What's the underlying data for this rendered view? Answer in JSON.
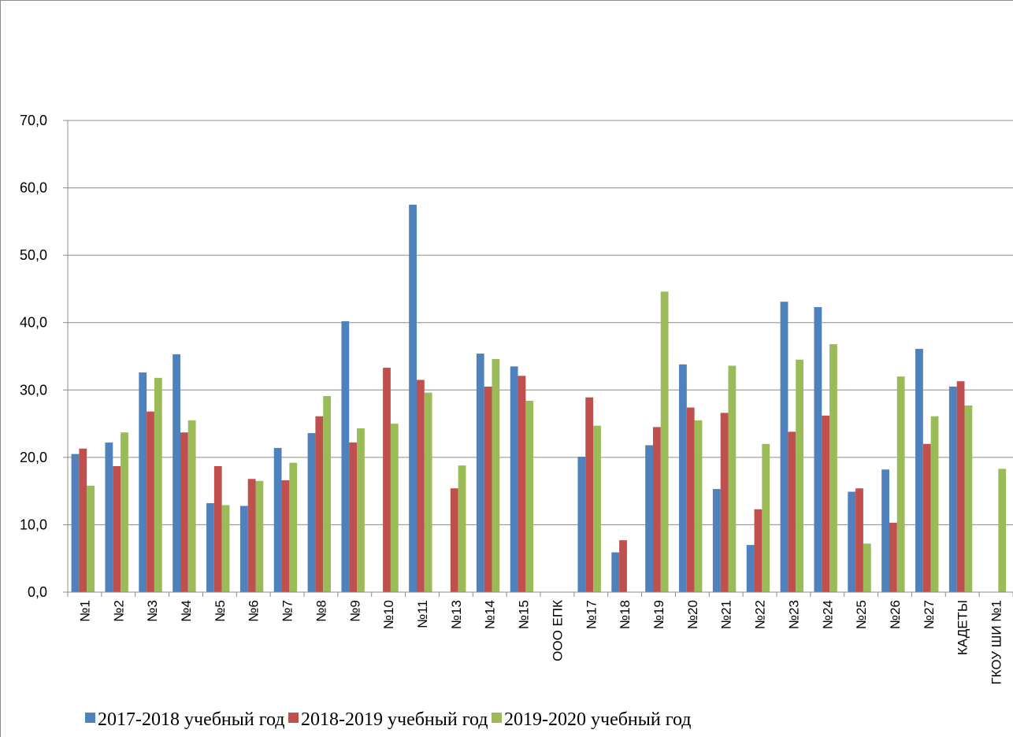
{
  "chart_data": {
    "type": "bar",
    "title": "",
    "xlabel": "",
    "ylabel": "",
    "ylim": [
      0,
      70
    ],
    "ytick_step": 10,
    "ytick_labels": [
      "0,0",
      "10,0",
      "20,0",
      "30,0",
      "40,0",
      "50,0",
      "60,0",
      "70,0"
    ],
    "grid": true,
    "legend_position": "bottom",
    "categories": [
      "№1",
      "№2",
      "№3",
      "№4",
      "№5",
      "№6",
      "№7",
      "№8",
      "№9",
      "№10",
      "№11",
      "№13",
      "№14",
      "№15",
      "ООО ЕПК",
      "№17",
      "№18",
      "№19",
      "№20",
      "№21",
      "№22",
      "№23",
      "№24",
      "№25",
      "№26",
      "№27",
      "КАДЕТЫ",
      "ГКОУ ШИ №1"
    ],
    "series": [
      {
        "name": "2017-2018 учебный год",
        "color": "#4F81BD",
        "values": [
          20.5,
          22.2,
          32.6,
          35.3,
          13.2,
          12.8,
          21.4,
          23.6,
          40.2,
          null,
          57.5,
          null,
          35.4,
          33.5,
          null,
          20.1,
          5.9,
          21.8,
          33.8,
          15.3,
          7.0,
          43.1,
          42.3,
          14.9,
          18.2,
          36.1,
          30.5,
          null
        ]
      },
      {
        "name": "2018-2019 учебный год",
        "color": "#C0504D",
        "values": [
          21.3,
          18.7,
          26.8,
          23.7,
          18.7,
          16.8,
          16.6,
          26.1,
          22.2,
          33.3,
          31.5,
          15.4,
          30.5,
          32.1,
          null,
          28.9,
          7.7,
          24.5,
          27.4,
          26.6,
          12.3,
          23.8,
          26.2,
          15.4,
          10.3,
          22.0,
          31.3,
          null
        ]
      },
      {
        "name": "2019-2020 учебный год",
        "color": "#9BBB59",
        "values": [
          15.8,
          23.7,
          31.8,
          25.5,
          12.9,
          16.5,
          19.2,
          29.1,
          24.3,
          25.0,
          29.6,
          18.8,
          34.6,
          28.4,
          null,
          24.7,
          null,
          44.6,
          25.5,
          33.6,
          22.0,
          34.5,
          36.8,
          7.2,
          32.0,
          26.1,
          27.7,
          18.3
        ]
      }
    ]
  }
}
